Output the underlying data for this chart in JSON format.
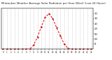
{
  "title": "Milwaukee Weather Average Solar Radiation per Hour W/m2 (Last 24 Hours)",
  "x_values": [
    0,
    1,
    2,
    3,
    4,
    5,
    6,
    7,
    8,
    9,
    10,
    11,
    12,
    13,
    14,
    15,
    16,
    17,
    18,
    19,
    20,
    21,
    22,
    23
  ],
  "y_values": [
    0,
    0,
    0,
    0,
    0,
    0,
    0,
    2,
    40,
    120,
    220,
    310,
    350,
    300,
    210,
    130,
    50,
    8,
    0,
    0,
    0,
    0,
    0,
    0
  ],
  "line_color": "#dd0000",
  "bg_color": "#ffffff",
  "plot_bg_color": "#ffffff",
  "grid_color": "#999999",
  "ylim": [
    0,
    400
  ],
  "y_ticks": [
    50,
    100,
    150,
    200,
    250,
    300,
    350
  ],
  "xlim": [
    -0.5,
    23.5
  ]
}
